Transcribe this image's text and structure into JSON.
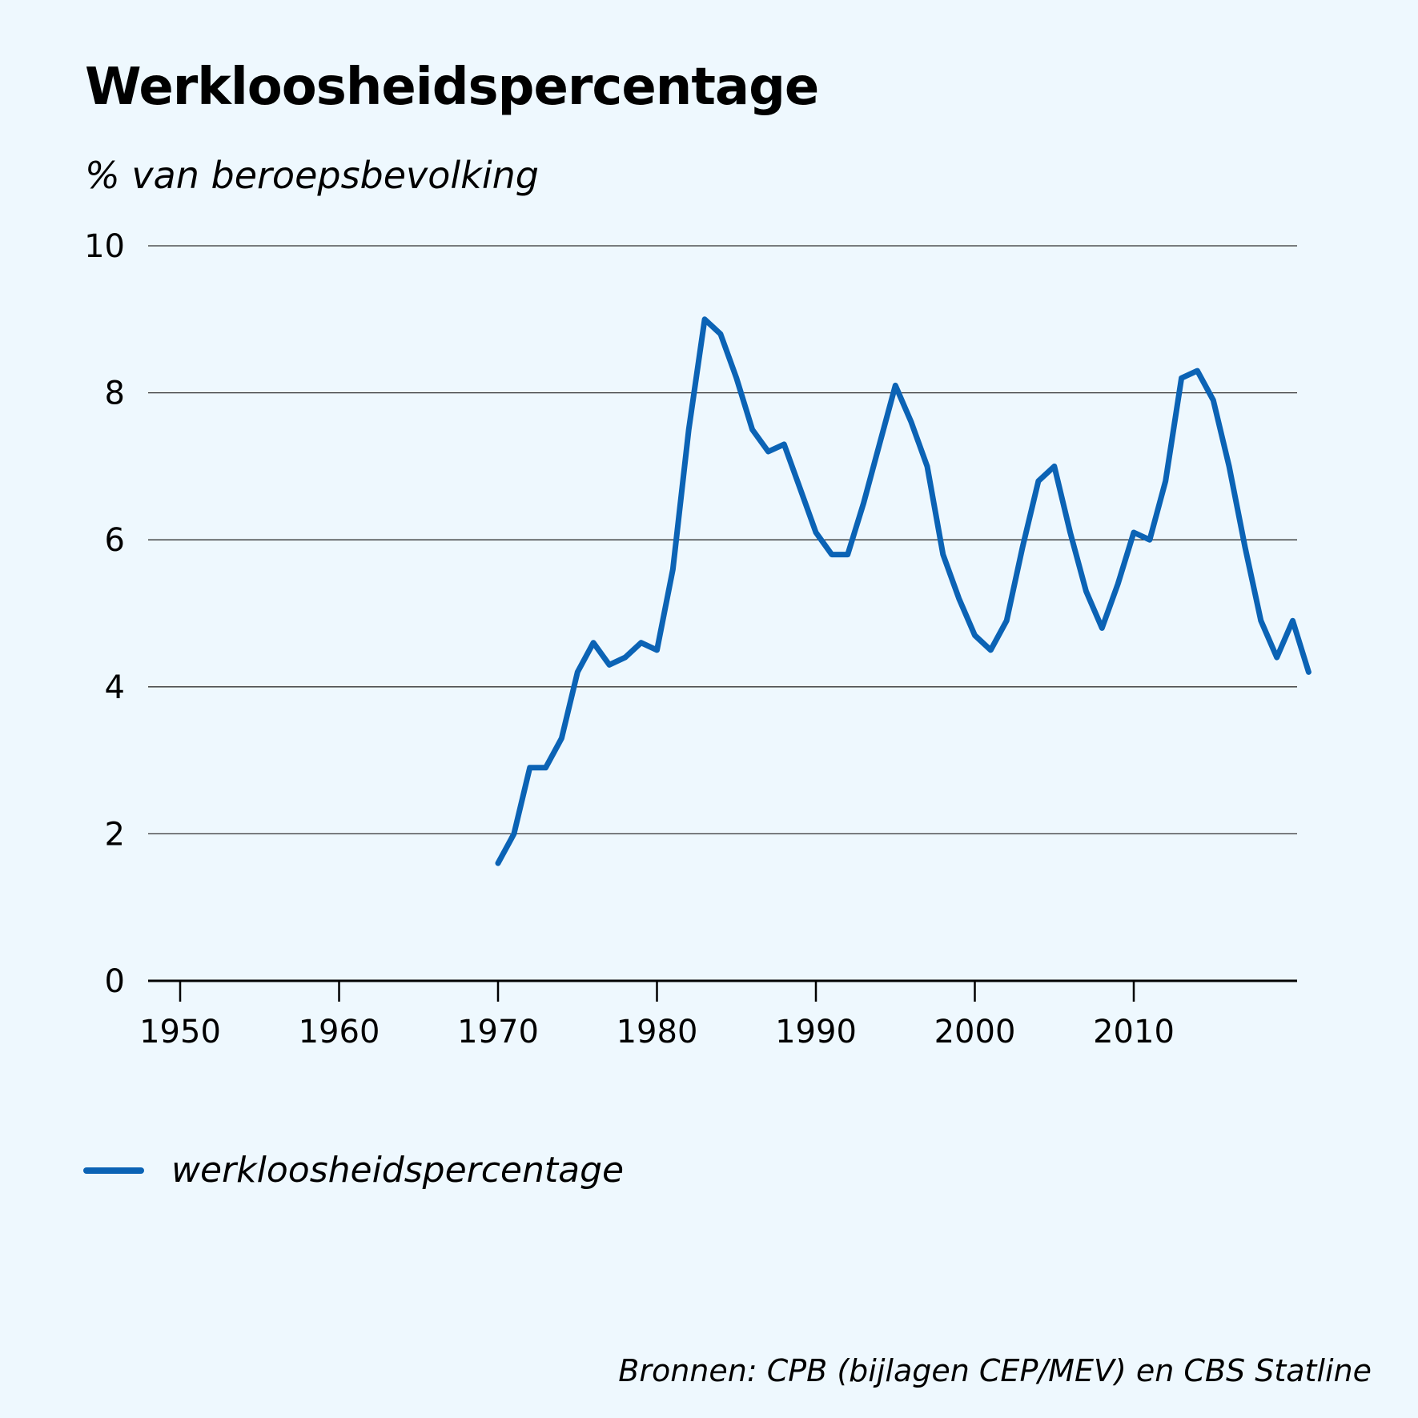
{
  "chart_data": {
    "type": "line",
    "title": "Werkloosheidspercentage",
    "subtitle": "% van beroepsbevolking",
    "ylim": [
      0,
      10
    ],
    "yticks": [
      0,
      2,
      4,
      6,
      8,
      10
    ],
    "xlim": [
      1948,
      2020
    ],
    "xticks": [
      1950,
      1960,
      1970,
      1980,
      1990,
      2000,
      2010
    ],
    "grid": true,
    "legend_position": "bottom-left",
    "series": [
      {
        "name": "werkloosheidspercentage",
        "color": "#0b63b5",
        "points": [
          [
            1970,
            1.6
          ],
          [
            1971,
            2.0
          ],
          [
            1972,
            2.9
          ],
          [
            1973,
            2.9
          ],
          [
            1974,
            3.3
          ],
          [
            1975,
            4.2
          ],
          [
            1976,
            4.6
          ],
          [
            1977,
            4.3
          ],
          [
            1978,
            4.4
          ],
          [
            1979,
            4.6
          ],
          [
            1980,
            4.5
          ],
          [
            1981,
            5.6
          ],
          [
            1982,
            7.5
          ],
          [
            1983,
            9.0
          ],
          [
            1984,
            8.8
          ],
          [
            1985,
            8.2
          ],
          [
            1986,
            7.5
          ],
          [
            1987,
            7.2
          ],
          [
            1988,
            7.3
          ],
          [
            1989,
            6.7
          ],
          [
            1990,
            6.1
          ],
          [
            1991,
            5.8
          ],
          [
            1992,
            5.8
          ],
          [
            1993,
            6.5
          ],
          [
            1994,
            7.3
          ],
          [
            1995,
            8.1
          ],
          [
            1996,
            7.6
          ],
          [
            1997,
            7.0
          ],
          [
            1998,
            5.8
          ],
          [
            1999,
            5.2
          ],
          [
            2000,
            4.7
          ],
          [
            2001,
            4.5
          ],
          [
            2002,
            4.9
          ],
          [
            2003,
            5.9
          ],
          [
            2004,
            6.8
          ],
          [
            2005,
            7.0
          ],
          [
            2006,
            6.1
          ],
          [
            2007,
            5.3
          ],
          [
            2008,
            4.8
          ],
          [
            2009,
            5.4
          ],
          [
            2010,
            6.1
          ],
          [
            2011,
            6.0
          ],
          [
            2012,
            6.8
          ],
          [
            2013,
            8.2
          ],
          [
            2014,
            8.3
          ],
          [
            2015,
            7.9
          ],
          [
            2016,
            7.0
          ],
          [
            2017,
            5.9
          ],
          [
            2018,
            4.9
          ],
          [
            2019,
            4.4
          ],
          [
            2020,
            4.9
          ],
          [
            2021,
            4.2
          ]
        ]
      }
    ]
  },
  "source": "Bronnen: CPB (bijlagen CEP/MEV) en CBS Statline"
}
